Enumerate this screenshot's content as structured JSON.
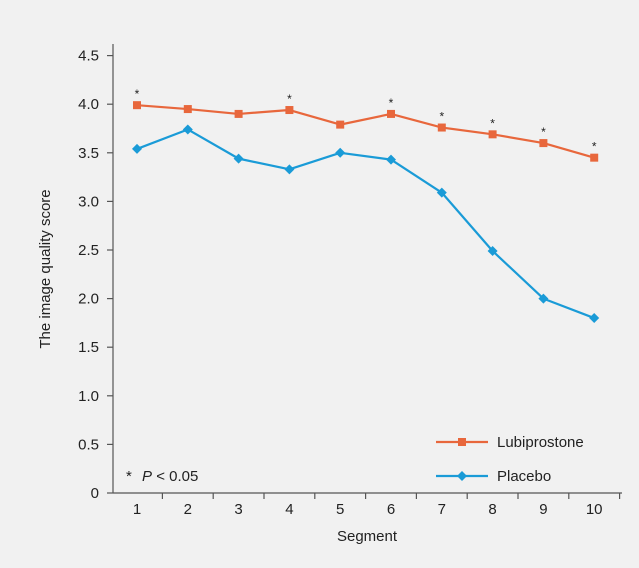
{
  "chart_data": {
    "type": "line",
    "xlabel": "Segment",
    "ylabel": "The image quality score",
    "ylim": [
      0,
      4.5
    ],
    "yticks": [
      "0",
      "0.5",
      "1.0",
      "1.5",
      "2.0",
      "2.5",
      "3.0",
      "3.5",
      "4.0",
      "4.5"
    ],
    "x": [
      "1",
      "2",
      "3",
      "4",
      "5",
      "6",
      "7",
      "8",
      "9",
      "10"
    ],
    "series": [
      {
        "name": "Lubiprostone",
        "color": "#e8673c",
        "marker": "square",
        "values": [
          3.99,
          3.95,
          3.9,
          3.94,
          3.79,
          3.9,
          3.76,
          3.69,
          3.6,
          3.45
        ]
      },
      {
        "name": "Placebo",
        "color": "#1a9bd7",
        "marker": "diamond",
        "values": [
          3.54,
          3.74,
          3.44,
          3.33,
          3.5,
          3.43,
          3.09,
          2.49,
          2.0,
          1.8
        ]
      }
    ],
    "significance_marker": "*",
    "significant_segments": [
      "1",
      "4",
      "6",
      "7",
      "8",
      "9",
      "10"
    ],
    "note": {
      "symbol": "*",
      "italic": "P",
      "rest": " < 0.05"
    },
    "legend_position": "bottom-right",
    "grid": false
  }
}
